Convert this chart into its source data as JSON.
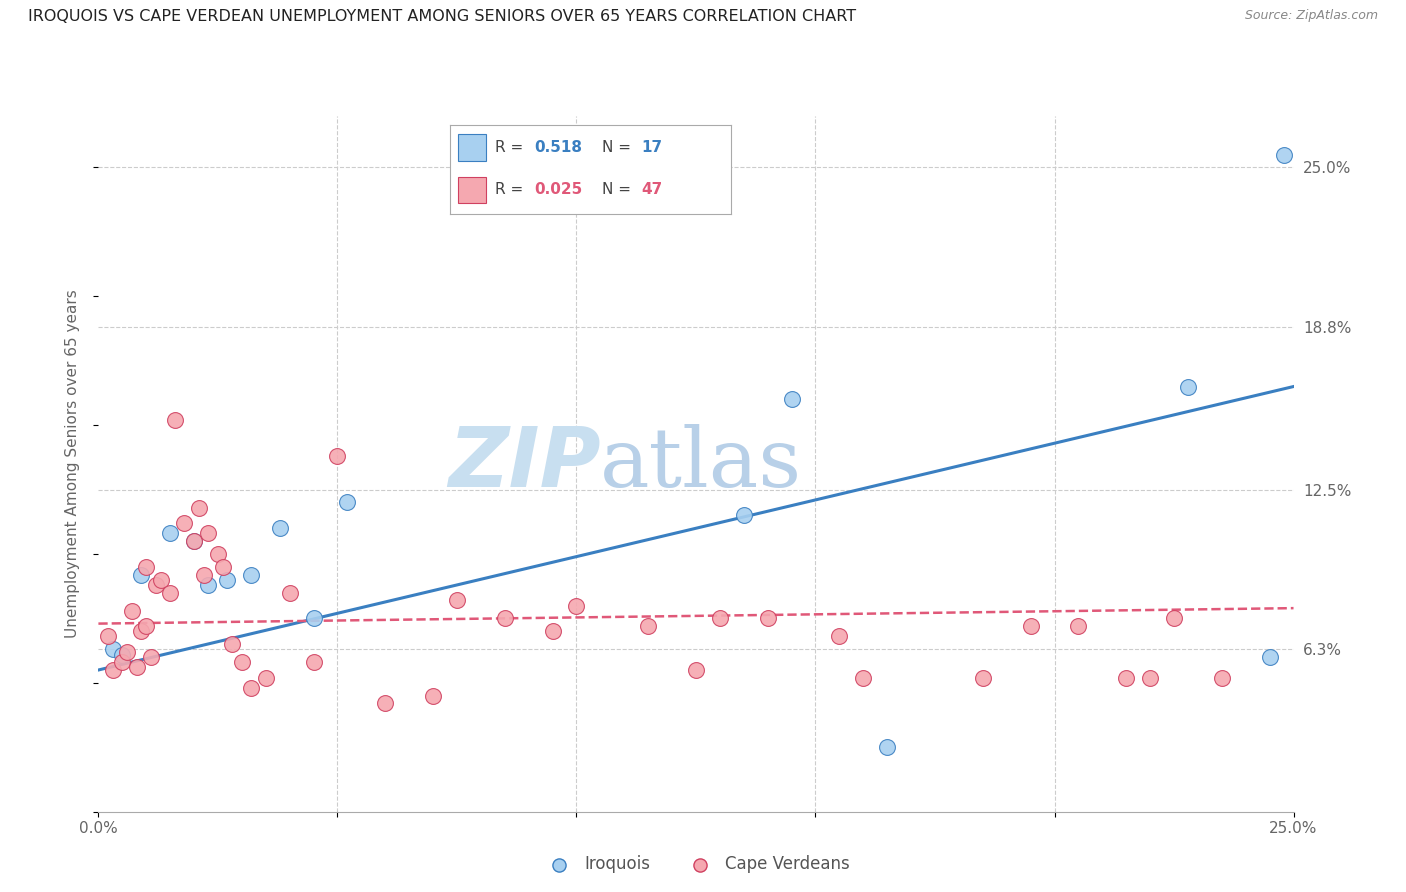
{
  "title": "IROQUOIS VS CAPE VERDEAN UNEMPLOYMENT AMONG SENIORS OVER 65 YEARS CORRELATION CHART",
  "source": "Source: ZipAtlas.com",
  "ylabel": "Unemployment Among Seniors over 65 years",
  "xlim": [
    0,
    25
  ],
  "ylim": [
    0,
    27
  ],
  "iroquois_R": "0.518",
  "iroquois_N": "17",
  "cape_verdean_R": "0.025",
  "cape_verdean_N": "47",
  "iroquois_color": "#a8d0f0",
  "cape_verdean_color": "#f5a8b0",
  "iroquois_line_color": "#3a7fc1",
  "cape_verdean_line_color": "#e05878",
  "watermark_zip": "ZIP",
  "watermark_atlas": "atlas",
  "watermark_color_zip": "#c8dff0",
  "watermark_color_atlas": "#c8dff0",
  "iroquois_x": [
    0.3,
    0.5,
    0.9,
    1.5,
    2.0,
    2.3,
    2.7,
    3.2,
    3.8,
    4.5,
    5.2,
    13.5,
    14.5,
    16.5,
    22.8,
    24.5,
    24.8
  ],
  "iroquois_y": [
    6.3,
    6.1,
    9.2,
    10.8,
    10.5,
    8.8,
    9.0,
    9.2,
    11.0,
    7.5,
    12.0,
    11.5,
    16.0,
    2.5,
    16.5,
    6.0,
    25.5
  ],
  "cape_verdean_x": [
    0.2,
    0.3,
    0.5,
    0.6,
    0.7,
    0.8,
    0.9,
    1.0,
    1.0,
    1.1,
    1.2,
    1.3,
    1.5,
    1.6,
    1.8,
    2.0,
    2.1,
    2.2,
    2.3,
    2.5,
    2.6,
    2.8,
    3.0,
    3.2,
    3.5,
    4.0,
    4.5,
    5.0,
    6.0,
    7.0,
    7.5,
    8.5,
    9.5,
    10.0,
    11.5,
    12.5,
    13.0,
    14.0,
    15.5,
    16.0,
    18.5,
    19.5,
    20.5,
    21.5,
    22.0,
    22.5,
    23.5
  ],
  "cape_verdean_y": [
    6.8,
    5.5,
    5.8,
    6.2,
    7.8,
    5.6,
    7.0,
    7.2,
    9.5,
    6.0,
    8.8,
    9.0,
    8.5,
    15.2,
    11.2,
    10.5,
    11.8,
    9.2,
    10.8,
    10.0,
    9.5,
    6.5,
    5.8,
    4.8,
    5.2,
    8.5,
    5.8,
    13.8,
    4.2,
    4.5,
    8.2,
    7.5,
    7.0,
    8.0,
    7.2,
    5.5,
    7.5,
    7.5,
    6.8,
    5.2,
    5.2,
    7.2,
    7.2,
    5.2,
    5.2,
    7.5,
    5.2
  ],
  "blue_line_x": [
    0,
    25
  ],
  "blue_line_y": [
    5.5,
    16.5
  ],
  "pink_line_x": [
    0,
    25
  ],
  "pink_line_y": [
    7.3,
    7.9
  ]
}
